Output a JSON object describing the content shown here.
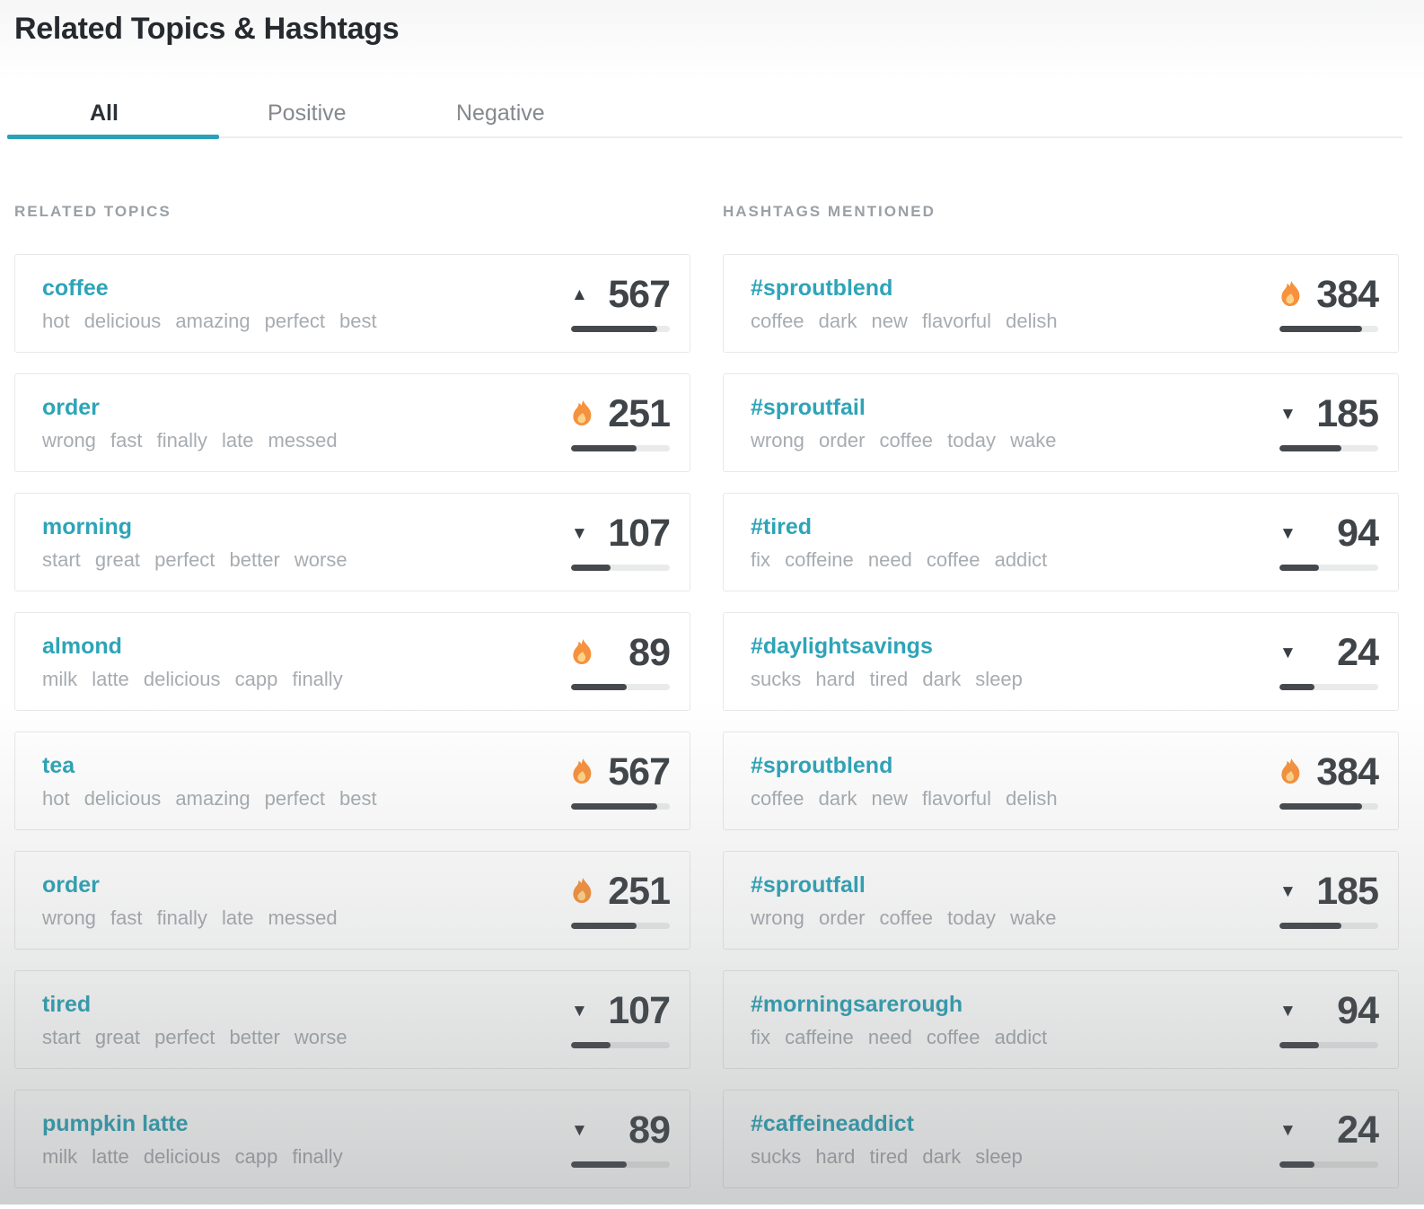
{
  "page": {
    "title": "Related Topics & Hashtags"
  },
  "tabs": [
    {
      "label": "All",
      "active": true
    },
    {
      "label": "Positive",
      "active": false
    },
    {
      "label": "Negative",
      "active": false
    }
  ],
  "colors": {
    "accent_teal": "#2ea4b8",
    "tab_indicator_teal": "#2aa2b6",
    "number_dark": "#3f4449",
    "bar_fill_dark": "#45494e",
    "bar_track_gray": "#e9eaea",
    "keyword_gray": "#a7acb1",
    "section_label_gray": "#9aa0a5",
    "flame_orange": "#f6913d"
  },
  "icons": {
    "up": "up-triangle-icon",
    "down": "down-triangle-icon",
    "hot": "flame-icon"
  },
  "sections": [
    {
      "label": "RELATED TOPICS",
      "items": [
        {
          "title": "coffee",
          "keywords": "hot delicious amazing perfect best",
          "trend": "up",
          "value": "567",
          "bar_percent": 87
        },
        {
          "title": "order",
          "keywords": "wrong fast finally late messed",
          "trend": "hot",
          "value": "251",
          "bar_percent": 66
        },
        {
          "title": "morning",
          "keywords": "start great perfect better worse",
          "trend": "down",
          "value": "107",
          "bar_percent": 40
        },
        {
          "title": "almond",
          "keywords": "milk latte delicious capp finally",
          "trend": "hot",
          "value": "89",
          "bar_percent": 56
        },
        {
          "title": "tea",
          "keywords": "hot delicious amazing perfect best",
          "trend": "hot",
          "value": "567",
          "bar_percent": 87
        },
        {
          "title": "order",
          "keywords": "wrong fast finally late messed",
          "trend": "hot",
          "value": "251",
          "bar_percent": 66
        },
        {
          "title": "tired",
          "keywords": "start great perfect better worse",
          "trend": "down",
          "value": "107",
          "bar_percent": 40
        },
        {
          "title": "pumpkin latte",
          "keywords": "milk latte delicious capp finally",
          "trend": "down",
          "value": "89",
          "bar_percent": 56
        }
      ]
    },
    {
      "label": "HASHTAGS MENTIONED",
      "items": [
        {
          "title": "#sproutblend",
          "keywords": "coffee dark new flavorful delish",
          "trend": "hot",
          "value": "384",
          "bar_percent": 84
        },
        {
          "title": "#sproutfail",
          "keywords": "wrong order coffee today wake",
          "trend": "down",
          "value": "185",
          "bar_percent": 63
        },
        {
          "title": "#tired",
          "keywords": "fix coffeine need coffee addict",
          "trend": "down",
          "value": "94",
          "bar_percent": 40
        },
        {
          "title": "#daylightsavings",
          "keywords": "sucks hard tired dark sleep",
          "trend": "down",
          "value": "24",
          "bar_percent": 35
        },
        {
          "title": "#sproutblend",
          "keywords": "coffee dark new flavorful delish",
          "trend": "hot",
          "value": "384",
          "bar_percent": 84
        },
        {
          "title": "#sproutfall",
          "keywords": "wrong order coffee today wake",
          "trend": "down",
          "value": "185",
          "bar_percent": 63
        },
        {
          "title": "#morningsarerough",
          "keywords": "fix caffeine need coffee addict",
          "trend": "down",
          "value": "94",
          "bar_percent": 40
        },
        {
          "title": "#caffeineaddict",
          "keywords": "sucks hard tired dark sleep",
          "trend": "down",
          "value": "24",
          "bar_percent": 35
        }
      ]
    }
  ]
}
